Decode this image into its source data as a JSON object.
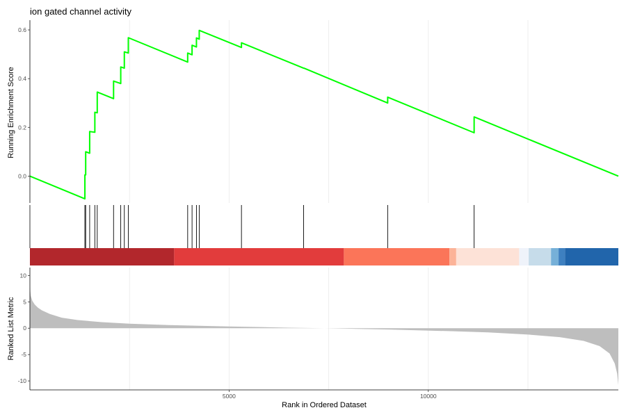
{
  "chart_data": {
    "type": "line",
    "title": "ion gated channel activity",
    "xlabel": "Rank in Ordered Dataset",
    "xlim": [
      0,
      14770
    ],
    "x_ticks": [
      5000,
      10000
    ],
    "x_tick_labels": [
      "5000",
      "10000"
    ],
    "x_gridlines": [
      2500,
      5000,
      7500,
      10000,
      12500
    ],
    "grid": "vertical-only",
    "panels": [
      {
        "name": "running-enrichment",
        "ylabel": "Running Enrichment Score",
        "ylim": [
          -0.11,
          0.64
        ],
        "y_ticks": [
          0.0,
          0.2,
          0.4,
          0.6
        ],
        "y_tick_labels": [
          "0.0",
          "0.2",
          "0.4",
          "0.6"
        ],
        "line_color": "#00ff00",
        "points": [
          [
            0,
            0.0
          ],
          [
            1380,
            -0.093
          ],
          [
            1380,
            0.005
          ],
          [
            1400,
            0.005
          ],
          [
            1400,
            0.1
          ],
          [
            1500,
            0.094
          ],
          [
            1500,
            0.183
          ],
          [
            1630,
            0.18
          ],
          [
            1630,
            0.262
          ],
          [
            1690,
            0.26
          ],
          [
            1690,
            0.345
          ],
          [
            2100,
            0.318
          ],
          [
            2100,
            0.39
          ],
          [
            2280,
            0.38
          ],
          [
            2280,
            0.448
          ],
          [
            2370,
            0.443
          ],
          [
            2370,
            0.51
          ],
          [
            2470,
            0.505
          ],
          [
            2470,
            0.568
          ],
          [
            3960,
            0.468
          ],
          [
            3960,
            0.505
          ],
          [
            4070,
            0.498
          ],
          [
            4070,
            0.537
          ],
          [
            4180,
            0.53
          ],
          [
            4180,
            0.567
          ],
          [
            4250,
            0.562
          ],
          [
            4250,
            0.598
          ],
          [
            5310,
            0.528
          ],
          [
            5310,
            0.547
          ],
          [
            6870,
            0.443
          ],
          [
            6880,
            0.443
          ],
          [
            8980,
            0.3
          ],
          [
            8980,
            0.324
          ],
          [
            11150,
            0.178
          ],
          [
            11150,
            0.243
          ],
          [
            14770,
            0.0
          ]
        ]
      },
      {
        "name": "hit-positions",
        "hits": [
          1380,
          1400,
          1500,
          1630,
          1690,
          2100,
          2280,
          2370,
          2470,
          3960,
          4070,
          4180,
          4250,
          5310,
          6870,
          8980,
          11150
        ]
      },
      {
        "name": "ranking-color-bar",
        "segments": [
          {
            "from": 0,
            "to": 3620,
            "color": "#b2272c"
          },
          {
            "from": 3620,
            "to": 7880,
            "color": "#e23c3c"
          },
          {
            "from": 7880,
            "to": 10530,
            "color": "#fb7559"
          },
          {
            "from": 10530,
            "to": 10700,
            "color": "#fcb398"
          },
          {
            "from": 10700,
            "to": 12280,
            "color": "#fde2d7"
          },
          {
            "from": 12280,
            "to": 12520,
            "color": "#eff3fa"
          },
          {
            "from": 12520,
            "to": 13080,
            "color": "#c6dcea"
          },
          {
            "from": 13080,
            "to": 13270,
            "color": "#76b0d8"
          },
          {
            "from": 13270,
            "to": 13430,
            "color": "#3e80c0"
          },
          {
            "from": 13430,
            "to": 14770,
            "color": "#2165ab"
          }
        ]
      },
      {
        "name": "ranked-list-metric",
        "ylabel": "Ranked List Metric",
        "ylim": [
          -11.7,
          11.5
        ],
        "y_ticks": [
          10,
          5,
          0,
          -5,
          -10
        ],
        "y_tick_labels": [
          "10",
          "5",
          "0",
          "-5",
          "-10"
        ],
        "fill_color": "#bebebe",
        "curve": [
          [
            0,
            7.8
          ],
          [
            20,
            6.2
          ],
          [
            60,
            5.2
          ],
          [
            120,
            4.5
          ],
          [
            200,
            3.9
          ],
          [
            300,
            3.4
          ],
          [
            500,
            2.7
          ],
          [
            800,
            2.0
          ],
          [
            1200,
            1.55
          ],
          [
            1800,
            1.15
          ],
          [
            2500,
            0.85
          ],
          [
            3500,
            0.6
          ],
          [
            5000,
            0.33
          ],
          [
            6500,
            0.1
          ],
          [
            7400,
            0.0
          ],
          [
            9000,
            -0.25
          ],
          [
            10500,
            -0.55
          ],
          [
            11500,
            -0.8
          ],
          [
            12500,
            -1.2
          ],
          [
            13300,
            -1.7
          ],
          [
            13900,
            -2.4
          ],
          [
            14300,
            -3.4
          ],
          [
            14550,
            -4.8
          ],
          [
            14680,
            -6.7
          ],
          [
            14740,
            -8.6
          ],
          [
            14770,
            -10.8
          ]
        ]
      }
    ]
  }
}
